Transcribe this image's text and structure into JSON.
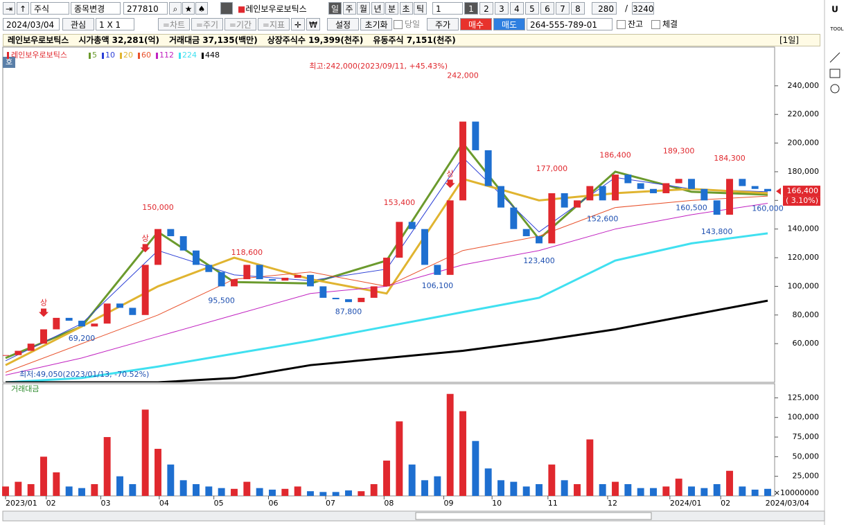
{
  "toolbar": {
    "market": "주식",
    "change": "종목변경",
    "code": "277810",
    "stock_name": "레인보우로보틱스",
    "periods": [
      "일",
      "주",
      "월",
      "년",
      "분",
      "초",
      "틱"
    ],
    "interval": "1",
    "numbers": [
      "1",
      "2",
      "3",
      "4",
      "5",
      "6",
      "7",
      "8"
    ],
    "count": "280",
    "separator": "/",
    "total": "3240",
    "user": "U"
  },
  "toolbar2": {
    "date": "2024/03/04",
    "watch": "관심",
    "layout": "1 X 1",
    "menus": [
      "=차트",
      "=주기",
      "=기간",
      "=지표"
    ],
    "settings": "설정",
    "reset": "초기화",
    "today": "당일",
    "price": "주가",
    "buy": "매수",
    "sell": "매도",
    "account": "264-555-789-01",
    "balance": "잔고",
    "filled": "체결"
  },
  "info_bar": {
    "name": "레인보우로보틱스",
    "items": [
      "시가총액 32,281(억)",
      "거래대금 37,135(백만)",
      "상장주식수 19,399(천주)",
      "유동주식 7,151(천주)"
    ],
    "period": "[1일]"
  },
  "side_panel": {
    "tool": "TOOL"
  },
  "quote_button": "호",
  "chart_data": {
    "type": "candlestick",
    "legend_name": "레인보우로보틱스",
    "close": [
      52000,
      55000,
      60000,
      70000,
      78000,
      76000,
      72000,
      74000,
      88000,
      85000,
      80000,
      115000,
      140000,
      135000,
      125000,
      115000,
      110000,
      100000,
      105000,
      115000,
      105000,
      104000,
      106000,
      108000,
      100000,
      92000,
      91000,
      89000,
      92000,
      100000,
      120000,
      145000,
      140000,
      115000,
      108000,
      160000,
      215000,
      195000,
      170000,
      155000,
      140000,
      135000,
      130000,
      165000,
      155000,
      160000,
      170000,
      160000,
      178000,
      172000,
      168000,
      165000,
      172000,
      175000,
      168000,
      160000,
      150000,
      175000,
      170000,
      168000,
      166400
    ],
    "up_color": "#e0282e",
    "down_color": "#1e6fd0",
    "xlim": [
      0,
      60
    ],
    "ma_x": [
      0,
      6,
      12,
      18,
      24,
      30,
      36,
      42,
      48,
      54,
      60
    ],
    "series": [
      {
        "name": "5",
        "color": "#6b9a2d",
        "line_width": 3,
        "values": [
          50000,
          72000,
          138000,
          103000,
          102000,
          118000,
          200000,
          133000,
          180000,
          166000,
          164000
        ]
      },
      {
        "name": "10",
        "color": "#2b3fd6",
        "line_width": 1,
        "values": [
          48000,
          74000,
          125000,
          108000,
          104000,
          112000,
          190000,
          138000,
          176000,
          168000,
          166000
        ]
      },
      {
        "name": "20",
        "color": "#e0b430",
        "line_width": 3,
        "values": [
          45000,
          72000,
          100000,
          120000,
          105000,
          95000,
          175000,
          160000,
          165000,
          168000,
          165000
        ]
      },
      {
        "name": "60",
        "color": "#e8502a",
        "line_width": 1,
        "values": [
          40000,
          60000,
          80000,
          105000,
          110000,
          100000,
          125000,
          135000,
          155000,
          160000,
          163000
        ]
      },
      {
        "name": "112",
        "color": "#c020c0",
        "line_width": 1,
        "values": [
          38000,
          50000,
          65000,
          80000,
          95000,
          100000,
          115000,
          125000,
          140000,
          150000,
          158000
        ]
      },
      {
        "name": "224",
        "color": "#40e0f0",
        "line_width": 3,
        "values": [
          33000,
          36000,
          44000,
          53000,
          62000,
          72000,
          82000,
          92000,
          118000,
          130000,
          137000
        ]
      },
      {
        "name": "448",
        "color": "#000000",
        "line_width": 3,
        "values": [
          33000,
          33000,
          33000,
          36000,
          45000,
          50000,
          55000,
          62000,
          70000,
          80000,
          90000
        ]
      }
    ],
    "ylim": [
      33000,
      267000
    ],
    "yticks": [
      {
        "value": 60000,
        "label": "60,000"
      },
      {
        "value": 80000,
        "label": "80,000"
      },
      {
        "value": 100000,
        "label": "100,000"
      },
      {
        "value": 120000,
        "label": "120,000"
      },
      {
        "value": 140000,
        "label": "140,000"
      },
      {
        "value": 160000,
        "label": "160,000"
      },
      {
        "value": 180000,
        "label": "180,000"
      },
      {
        "value": 200000,
        "label": "200,000"
      },
      {
        "value": 220000,
        "label": "220,000"
      },
      {
        "value": 240000,
        "label": "240,000"
      }
    ],
    "xticks": [
      {
        "value": 0,
        "label": "2023/01"
      },
      {
        "value": 3.2,
        "label": "02"
      },
      {
        "value": 7.5,
        "label": "03"
      },
      {
        "value": 12.1,
        "label": "04"
      },
      {
        "value": 16.4,
        "label": "05"
      },
      {
        "value": 20.7,
        "label": "06"
      },
      {
        "value": 25.2,
        "label": "07"
      },
      {
        "value": 29.8,
        "label": "08"
      },
      {
        "value": 34.5,
        "label": "09"
      },
      {
        "value": 38.3,
        "label": "10"
      },
      {
        "value": 42.7,
        "label": "11"
      },
      {
        "value": 47.4,
        "label": "12"
      },
      {
        "value": 52.3,
        "label": "2024/01"
      },
      {
        "value": 56.3,
        "label": "02"
      }
    ],
    "end_date": "2024/03/04",
    "annotations": [
      {
        "x": 12,
        "value": 150000,
        "label": "150,000"
      },
      {
        "x": 19,
        "value": 118600,
        "label": "118,600"
      },
      {
        "x": 17,
        "value": 95500,
        "label": "95,500"
      },
      {
        "x": 6,
        "value": 69200,
        "label": "69,200"
      },
      {
        "x": 27,
        "value": 87800,
        "label": "87,800"
      },
      {
        "x": 31,
        "value": 153400,
        "label": "153,400"
      },
      {
        "x": 34,
        "value": 106100,
        "label": "106,100"
      },
      {
        "x": 36,
        "value": 242000,
        "label": "242,000"
      },
      {
        "x": 43,
        "value": 177000,
        "label": "177,000"
      },
      {
        "x": 42,
        "value": 123400,
        "label": "123,400"
      },
      {
        "x": 48,
        "value": 186400,
        "label": "186,400"
      },
      {
        "x": 47,
        "value": 152600,
        "label": "152,600"
      },
      {
        "x": 53,
        "value": 189300,
        "label": "189,300"
      },
      {
        "x": 54,
        "value": 160500,
        "label": "160,500"
      },
      {
        "x": 57,
        "value": 184300,
        "label": "184,300"
      },
      {
        "x": 56,
        "value": 143800,
        "label": "143,800"
      },
      {
        "x": 60,
        "value": 160000,
        "label": "160,000"
      }
    ],
    "high_note": "최고:242,000(2023/09/11, +45.43%)",
    "low_note": "최저:49,050(2023/01/13, -70.52%)",
    "limit_up_label": "상",
    "limit_up_x": [
      3,
      11,
      35
    ],
    "current_price": {
      "value": 166400,
      "label": "166,400"
    },
    "change_label": "( 3.10%)",
    "volume": {
      "title": "거래대금",
      "unit": "×10000000",
      "ylim": [
        0,
        143000
      ],
      "yticks": [
        {
          "value": 25000,
          "label": "25,000"
        },
        {
          "value": 50000,
          "label": "50,000"
        },
        {
          "value": 75000,
          "label": "75,000"
        },
        {
          "value": 100000,
          "label": "100,000"
        },
        {
          "value": 125000,
          "label": "125,000"
        }
      ],
      "values": [
        12000,
        18000,
        15000,
        50000,
        30000,
        12000,
        10000,
        15000,
        75000,
        25000,
        15000,
        110000,
        60000,
        40000,
        20000,
        15000,
        12000,
        10000,
        9000,
        18000,
        10000,
        8000,
        9000,
        12000,
        6000,
        5000,
        5000,
        7000,
        6000,
        15000,
        45000,
        95000,
        40000,
        20000,
        25000,
        130000,
        108000,
        70000,
        35000,
        20000,
        18000,
        12000,
        15000,
        40000,
        20000,
        15000,
        72000,
        15000,
        18000,
        15000,
        10000,
        10000,
        12000,
        22000,
        12000,
        10000,
        15000,
        32000,
        12000,
        8000,
        9000
      ]
    }
  }
}
